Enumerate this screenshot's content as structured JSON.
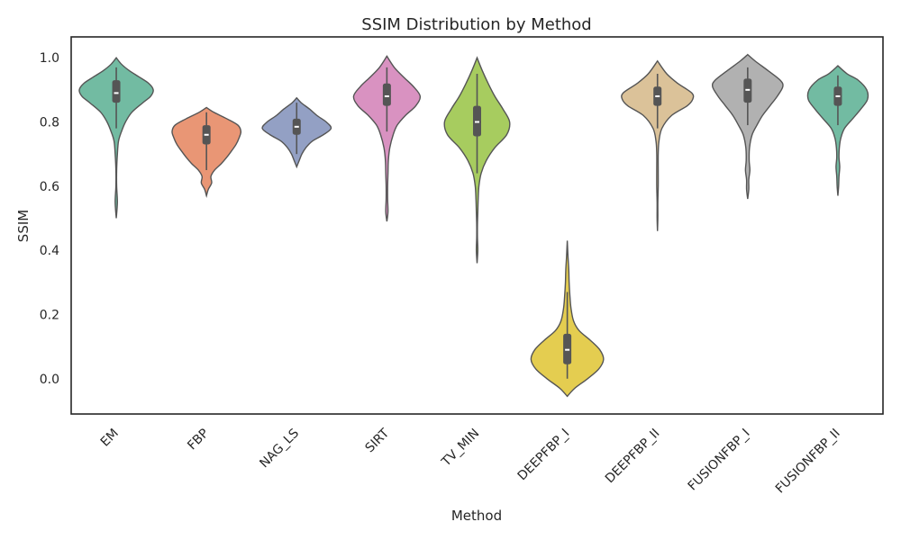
{
  "chart_data": {
    "type": "violin",
    "title": "SSIM Distribution by Method",
    "xlabel": "Method",
    "ylabel": "SSIM",
    "ylim": [
      -0.11,
      1.065
    ],
    "yticks": [
      0.0,
      0.2,
      0.4,
      0.6,
      0.8,
      1.0
    ],
    "ytick_labels": [
      "0.0",
      "0.2",
      "0.4",
      "0.6",
      "0.8",
      "1.0"
    ],
    "grid": false,
    "legend": "none",
    "inner": "box",
    "box_color": "#555555",
    "series": [
      {
        "category": "EM",
        "color": "#72bba2",
        "min": 0.5,
        "max": 1.0,
        "q1": 0.86,
        "median": 0.89,
        "q3": 0.93,
        "whisker_low": 0.78,
        "whisker_high": 0.97,
        "profile": [
          [
            0.5,
            0.0
          ],
          [
            0.55,
            0.03
          ],
          [
            0.6,
            0.01
          ],
          [
            0.65,
            0.01
          ],
          [
            0.7,
            0.03
          ],
          [
            0.74,
            0.06
          ],
          [
            0.77,
            0.14
          ],
          [
            0.8,
            0.25
          ],
          [
            0.83,
            0.42
          ],
          [
            0.86,
            0.72
          ],
          [
            0.88,
            0.93
          ],
          [
            0.9,
            1.0
          ],
          [
            0.92,
            0.88
          ],
          [
            0.94,
            0.62
          ],
          [
            0.96,
            0.35
          ],
          [
            0.98,
            0.14
          ],
          [
            1.0,
            0.0
          ]
        ]
      },
      {
        "category": "FBP",
        "color": "#e99675",
        "min": 0.57,
        "max": 0.845,
        "q1": 0.73,
        "median": 0.76,
        "q3": 0.79,
        "whisker_low": 0.65,
        "whisker_high": 0.83,
        "profile": [
          [
            0.57,
            0.0
          ],
          [
            0.59,
            0.05
          ],
          [
            0.61,
            0.14
          ],
          [
            0.63,
            0.12
          ],
          [
            0.65,
            0.22
          ],
          [
            0.67,
            0.4
          ],
          [
            0.69,
            0.55
          ],
          [
            0.71,
            0.68
          ],
          [
            0.73,
            0.8
          ],
          [
            0.75,
            0.88
          ],
          [
            0.77,
            0.93
          ],
          [
            0.79,
            0.85
          ],
          [
            0.81,
            0.55
          ],
          [
            0.83,
            0.2
          ],
          [
            0.845,
            0.0
          ]
        ]
      },
      {
        "category": "NAG_LS",
        "color": "#93a0c4",
        "min": 0.66,
        "max": 0.875,
        "q1": 0.76,
        "median": 0.785,
        "q3": 0.81,
        "whisker_low": 0.7,
        "whisker_high": 0.86,
        "profile": [
          [
            0.66,
            0.0
          ],
          [
            0.68,
            0.07
          ],
          [
            0.7,
            0.14
          ],
          [
            0.72,
            0.25
          ],
          [
            0.74,
            0.42
          ],
          [
            0.76,
            0.72
          ],
          [
            0.78,
            0.93
          ],
          [
            0.8,
            0.8
          ],
          [
            0.82,
            0.55
          ],
          [
            0.84,
            0.35
          ],
          [
            0.86,
            0.12
          ],
          [
            0.875,
            0.0
          ]
        ]
      },
      {
        "category": "SIRT",
        "color": "#d992c1",
        "min": 0.49,
        "max": 1.005,
        "q1": 0.85,
        "median": 0.88,
        "q3": 0.92,
        "whisker_low": 0.77,
        "whisker_high": 0.97,
        "profile": [
          [
            0.49,
            0.0
          ],
          [
            0.52,
            0.03
          ],
          [
            0.56,
            0.02
          ],
          [
            0.6,
            0.02
          ],
          [
            0.64,
            0.03
          ],
          [
            0.68,
            0.04
          ],
          [
            0.72,
            0.08
          ],
          [
            0.76,
            0.17
          ],
          [
            0.79,
            0.28
          ],
          [
            0.82,
            0.5
          ],
          [
            0.85,
            0.78
          ],
          [
            0.88,
            0.9
          ],
          [
            0.91,
            0.72
          ],
          [
            0.94,
            0.45
          ],
          [
            0.97,
            0.2
          ],
          [
            1.005,
            0.0
          ]
        ]
      },
      {
        "category": "TV_MIN",
        "color": "#a7cc5f",
        "min": 0.36,
        "max": 1.0,
        "q1": 0.755,
        "median": 0.8,
        "q3": 0.85,
        "whisker_low": 0.64,
        "whisker_high": 0.95,
        "profile": [
          [
            0.36,
            0.0
          ],
          [
            0.4,
            0.02
          ],
          [
            0.44,
            0.01
          ],
          [
            0.48,
            0.01
          ],
          [
            0.52,
            0.02
          ],
          [
            0.56,
            0.03
          ],
          [
            0.6,
            0.05
          ],
          [
            0.64,
            0.11
          ],
          [
            0.68,
            0.25
          ],
          [
            0.72,
            0.48
          ],
          [
            0.76,
            0.8
          ],
          [
            0.8,
            0.88
          ],
          [
            0.84,
            0.7
          ],
          [
            0.88,
            0.48
          ],
          [
            0.92,
            0.3
          ],
          [
            0.96,
            0.14
          ],
          [
            1.0,
            0.0
          ]
        ]
      },
      {
        "category": "DEEPFBP_I",
        "color": "#e4cd50",
        "min": -0.055,
        "max": 0.43,
        "q1": 0.045,
        "median": 0.09,
        "q3": 0.14,
        "whisker_low": 0.0,
        "whisker_high": 0.27,
        "profile": [
          [
            -0.055,
            0.0
          ],
          [
            -0.03,
            0.2
          ],
          [
            0.0,
            0.55
          ],
          [
            0.03,
            0.85
          ],
          [
            0.06,
            0.98
          ],
          [
            0.09,
            0.88
          ],
          [
            0.12,
            0.62
          ],
          [
            0.15,
            0.32
          ],
          [
            0.18,
            0.17
          ],
          [
            0.22,
            0.1
          ],
          [
            0.26,
            0.07
          ],
          [
            0.3,
            0.05
          ],
          [
            0.34,
            0.04
          ],
          [
            0.38,
            0.02
          ],
          [
            0.43,
            0.0
          ]
        ]
      },
      {
        "category": "DEEPFBP_II",
        "color": "#dbc299",
        "min": 0.46,
        "max": 0.99,
        "q1": 0.85,
        "median": 0.88,
        "q3": 0.91,
        "whisker_low": 0.78,
        "whisker_high": 0.95,
        "profile": [
          [
            0.46,
            0.0
          ],
          [
            0.5,
            0.01
          ],
          [
            0.55,
            0.01
          ],
          [
            0.6,
            0.02
          ],
          [
            0.65,
            0.02
          ],
          [
            0.7,
            0.02
          ],
          [
            0.74,
            0.04
          ],
          [
            0.78,
            0.12
          ],
          [
            0.82,
            0.38
          ],
          [
            0.85,
            0.8
          ],
          [
            0.87,
            0.95
          ],
          [
            0.89,
            0.93
          ],
          [
            0.92,
            0.55
          ],
          [
            0.95,
            0.25
          ],
          [
            0.99,
            0.0
          ]
        ]
      },
      {
        "category": "FUSIONFBP_I",
        "color": "#b1b1b1",
        "min": 0.56,
        "max": 1.01,
        "q1": 0.86,
        "median": 0.9,
        "q3": 0.935,
        "whisker_low": 0.79,
        "whisker_high": 0.97,
        "profile": [
          [
            0.56,
            0.0
          ],
          [
            0.59,
            0.03
          ],
          [
            0.62,
            0.03
          ],
          [
            0.65,
            0.06
          ],
          [
            0.68,
            0.04
          ],
          [
            0.72,
            0.05
          ],
          [
            0.76,
            0.12
          ],
          [
            0.79,
            0.25
          ],
          [
            0.82,
            0.4
          ],
          [
            0.85,
            0.6
          ],
          [
            0.88,
            0.8
          ],
          [
            0.91,
            0.95
          ],
          [
            0.93,
            0.88
          ],
          [
            0.96,
            0.55
          ],
          [
            0.99,
            0.2
          ],
          [
            1.01,
            0.0
          ]
        ]
      },
      {
        "category": "FUSIONFBP_II",
        "color": "#72bba2",
        "min": 0.57,
        "max": 0.975,
        "q1": 0.85,
        "median": 0.88,
        "q3": 0.91,
        "whisker_low": 0.79,
        "whisker_high": 0.945,
        "profile": [
          [
            0.57,
            0.0
          ],
          [
            0.6,
            0.02
          ],
          [
            0.63,
            0.03
          ],
          [
            0.66,
            0.05
          ],
          [
            0.69,
            0.03
          ],
          [
            0.72,
            0.04
          ],
          [
            0.75,
            0.08
          ],
          [
            0.78,
            0.18
          ],
          [
            0.81,
            0.4
          ],
          [
            0.84,
            0.62
          ],
          [
            0.87,
            0.8
          ],
          [
            0.9,
            0.78
          ],
          [
            0.93,
            0.55
          ],
          [
            0.95,
            0.25
          ],
          [
            0.975,
            0.0
          ]
        ]
      }
    ]
  }
}
